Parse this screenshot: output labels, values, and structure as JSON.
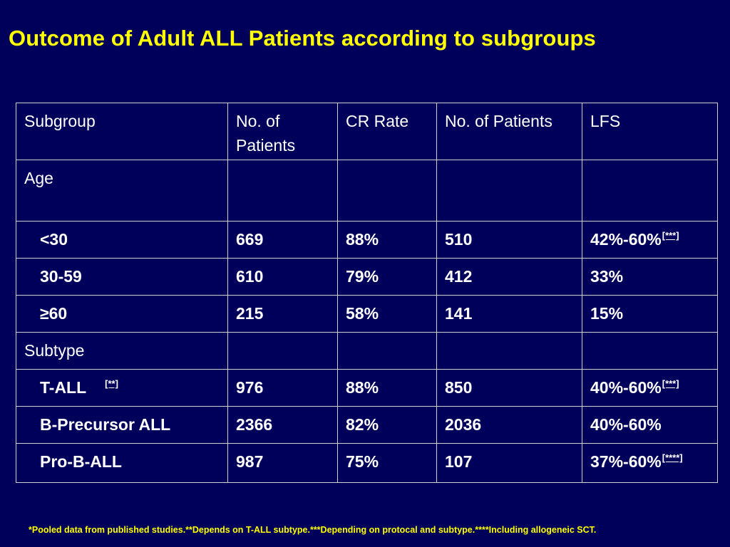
{
  "title": "Outcome of Adult ALL Patients according to subgroups",
  "table": {
    "headers": [
      "Subgroup",
      "No. of Patients",
      "CR Rate",
      "No. of Patients",
      "LFS"
    ],
    "sections": [
      {
        "label": "Age",
        "rows": [
          {
            "label": "<30",
            "ref": "",
            "patients": "669",
            "cr_rate": "88%",
            "patients_lfs": "510",
            "lfs": "42%-60%",
            "lfs_ref": "[***]"
          },
          {
            "label": "30-59",
            "ref": "",
            "patients": "610",
            "cr_rate": "79%",
            "patients_lfs": "412",
            "lfs": "33%",
            "lfs_ref": ""
          },
          {
            "label": "≥60",
            "ref": "",
            "patients": "215",
            "cr_rate": "58%",
            "patients_lfs": "141",
            "lfs": "15%",
            "lfs_ref": ""
          }
        ]
      },
      {
        "label": "Subtype",
        "rows": [
          {
            "label": "T-ALL",
            "ref": "[**]",
            "patients": "976",
            "cr_rate": "88%",
            "patients_lfs": "850",
            "lfs": "40%-60%",
            "lfs_ref": "[***]"
          },
          {
            "label": "B-Precursor ALL",
            "ref": "",
            "patients": "2366",
            "cr_rate": "82%",
            "patients_lfs": "2036",
            "lfs": "40%-60%",
            "lfs_ref": ""
          },
          {
            "label": "Pro-B-ALL",
            "ref": "",
            "patients": "987",
            "cr_rate": "75%",
            "patients_lfs": "107",
            "lfs": "37%-60%",
            "lfs_ref": "[****]"
          }
        ]
      }
    ]
  },
  "footnote": "*Pooled data from published studies.**Depends on T-ALL subtype.***Depending on protocal and subtype.****Including allogeneic SCT.",
  "colors": {
    "background": "#00005a",
    "title": "#ffff00",
    "text": "#ffffff",
    "footnote": "#ffff00",
    "border": "#d0d0d0"
  }
}
